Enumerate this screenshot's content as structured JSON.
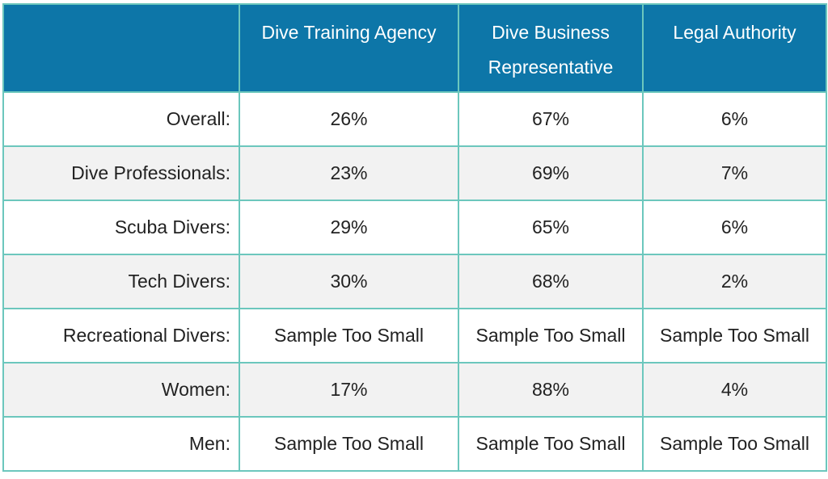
{
  "chart_data": {
    "type": "table",
    "columns": [
      "",
      "Dive Training Agency",
      "Dive Business\nRepresentative",
      "Legal Authority"
    ],
    "rows": [
      {
        "label": "Overall:",
        "values": [
          "26%",
          "67%",
          "6%"
        ]
      },
      {
        "label": "Dive Professionals:",
        "values": [
          "23%",
          "69%",
          "7%"
        ]
      },
      {
        "label": "Scuba Divers:",
        "values": [
          "29%",
          "65%",
          "6%"
        ]
      },
      {
        "label": "Tech Divers:",
        "values": [
          "30%",
          "68%",
          "2%"
        ]
      },
      {
        "label": "Recreational Divers:",
        "values": [
          "Sample Too Small",
          "Sample Too Small",
          "Sample Too Small"
        ]
      },
      {
        "label": "Women:",
        "values": [
          "17%",
          "88%",
          "4%"
        ]
      },
      {
        "label": "Men:",
        "values": [
          "Sample Too Small",
          "Sample Too Small",
          "Sample Too Small"
        ]
      }
    ]
  },
  "header": {
    "col1": "Dive Training Agency",
    "col2_line1": "Dive Business",
    "col2_line2": "Representative",
    "col3": "Legal Authority"
  },
  "colors": {
    "header_bg": "#0d76a8",
    "header_text": "#ffffff",
    "border": "#6cc7bd",
    "row_alt": "#f2f2f2",
    "row": "#ffffff",
    "text": "#222222"
  }
}
